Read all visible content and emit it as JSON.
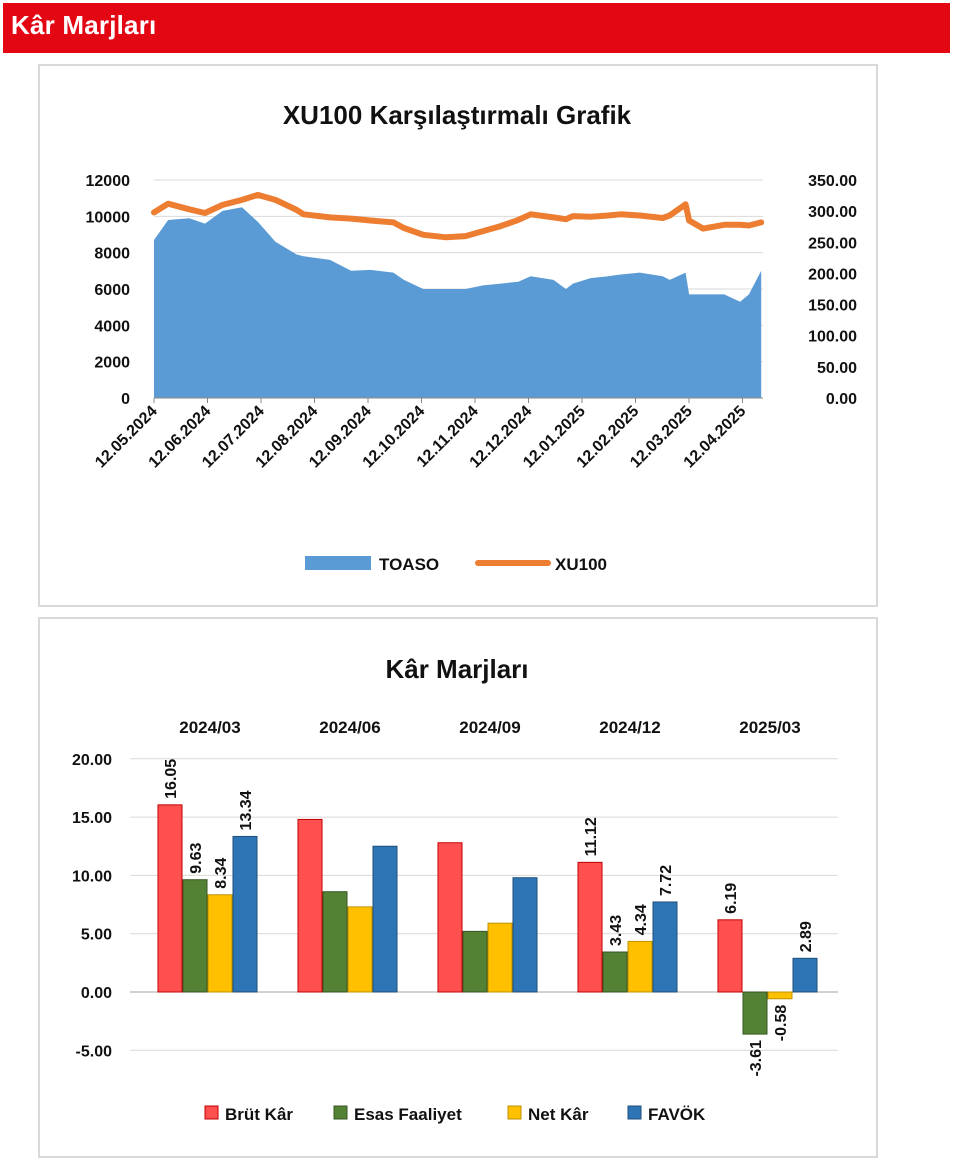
{
  "header": {
    "title": "Kâr Marjları"
  },
  "colors": {
    "header_red": "#e30613",
    "toaso_blue": "#5b9bd5",
    "xu100_orange": "#ed7d31",
    "brut": "#ff5050",
    "esas": "#548235",
    "net": "#ffc000",
    "favok": "#2e75b6"
  },
  "chart_data": [
    {
      "type": "area",
      "title": "XU100 Karşılaştırmalı  Grafik",
      "x_ticks": [
        "12.05.2024",
        "12.06.2024",
        "12.07.2024",
        "12.08.2024",
        "12.09.2024",
        "12.10.2024",
        "12.11.2024",
        "12.12.2024",
        "12.01.2025",
        "12.02.2025",
        "12.03.2025",
        "12.04.2025"
      ],
      "y_left_ticks": [
        "0",
        "2000",
        "4000",
        "6000",
        "8000",
        "10000",
        "12000"
      ],
      "y_right_ticks": [
        "0.00",
        "50.00",
        "100.00",
        "150.00",
        "200.00",
        "250.00",
        "300.00",
        "350.00"
      ],
      "ylim_left": [
        0,
        12000
      ],
      "ylim_right": [
        0,
        350
      ],
      "grid": "horizontal",
      "legend_position": "bottom",
      "series": [
        {
          "name": "TOASO",
          "axis": "left",
          "type": "area",
          "x": [
            "2024-05-12",
            "2024-05-20",
            "2024-06-01",
            "2024-06-10",
            "2024-06-20",
            "2024-07-01",
            "2024-07-10",
            "2024-07-20",
            "2024-08-01",
            "2024-08-05",
            "2024-08-20",
            "2024-09-01",
            "2024-09-12",
            "2024-09-25",
            "2024-10-01",
            "2024-10-12",
            "2024-10-25",
            "2024-11-05",
            "2024-11-15",
            "2024-11-25",
            "2024-12-05",
            "2024-12-12",
            "2024-12-25",
            "2025-01-01",
            "2025-01-05",
            "2025-01-15",
            "2025-01-25",
            "2025-02-01",
            "2025-02-12",
            "2025-02-25",
            "2025-03-01",
            "2025-03-10",
            "2025-03-12",
            "2025-03-20",
            "2025-04-01",
            "2025-04-10",
            "2025-04-15",
            "2025-04-22"
          ],
          "values": [
            8700,
            9800,
            9900,
            9600,
            10300,
            10500,
            9700,
            8600,
            7900,
            7800,
            7600,
            7000,
            7050,
            6900,
            6500,
            6000,
            6000,
            6000,
            6200,
            6300,
            6400,
            6700,
            6500,
            6000,
            6300,
            6600,
            6700,
            6800,
            6900,
            6700,
            6500,
            6900,
            5700,
            5700,
            5700,
            5300,
            5700,
            7000
          ]
        },
        {
          "name": "XU100",
          "axis": "right",
          "type": "line",
          "x": [
            "2024-05-12",
            "2024-05-20",
            "2024-06-01",
            "2024-06-10",
            "2024-06-20",
            "2024-07-01",
            "2024-07-10",
            "2024-07-20",
            "2024-08-01",
            "2024-08-05",
            "2024-08-20",
            "2024-09-01",
            "2024-09-12",
            "2024-09-25",
            "2024-10-01",
            "2024-10-12",
            "2024-10-25",
            "2024-11-05",
            "2024-11-15",
            "2024-11-25",
            "2024-12-05",
            "2024-12-12",
            "2024-12-25",
            "2025-01-01",
            "2025-01-05",
            "2025-01-15",
            "2025-01-25",
            "2025-02-01",
            "2025-02-12",
            "2025-02-25",
            "2025-03-01",
            "2025-03-10",
            "2025-03-12",
            "2025-03-20",
            "2025-04-01",
            "2025-04-10",
            "2025-04-15",
            "2025-04-22"
          ],
          "values": [
            298,
            312,
            303,
            297,
            310,
            318,
            326,
            318,
            302,
            295,
            290,
            288,
            285,
            282,
            273,
            262,
            258,
            260,
            268,
            276,
            286,
            295,
            290,
            287,
            292,
            291,
            293,
            295,
            293,
            289,
            293,
            311,
            285,
            272,
            278,
            278,
            277,
            282
          ]
        }
      ]
    },
    {
      "type": "bar",
      "title": "Kâr Marjları",
      "categories": [
        "2024/03",
        "2024/06",
        "2024/09",
        "2024/12",
        "2025/03"
      ],
      "ylim": [
        -5,
        20
      ],
      "y_ticks": [
        "-5.00",
        "0.00",
        "5.00",
        "10.00",
        "15.00",
        "20.00"
      ],
      "grid": "horizontal",
      "legend_position": "bottom",
      "series": [
        {
          "name": "Brüt Kâr",
          "values": [
            16.05,
            14.8,
            12.8,
            11.12,
            6.19
          ]
        },
        {
          "name": "Esas Faaliyet",
          "values": [
            9.63,
            8.6,
            5.2,
            3.43,
            -3.61
          ]
        },
        {
          "name": "Net Kâr",
          "values": [
            8.34,
            7.3,
            5.9,
            4.34,
            -0.58
          ]
        },
        {
          "name": "FAVÖK",
          "values": [
            13.34,
            12.5,
            9.8,
            7.72,
            2.89
          ]
        }
      ],
      "data_labels": [
        {
          "category": 0,
          "series": 0,
          "text": "16.05"
        },
        {
          "category": 0,
          "series": 1,
          "text": "9.63"
        },
        {
          "category": 0,
          "series": 2,
          "text": "8.34"
        },
        {
          "category": 0,
          "series": 3,
          "text": "13.34"
        },
        {
          "category": 3,
          "series": 0,
          "text": "11.12"
        },
        {
          "category": 3,
          "series": 1,
          "text": "3.43"
        },
        {
          "category": 3,
          "series": 2,
          "text": "4.34"
        },
        {
          "category": 3,
          "series": 3,
          "text": "7.72"
        },
        {
          "category": 4,
          "series": 0,
          "text": "6.19"
        },
        {
          "category": 4,
          "series": 1,
          "text": "-3.61"
        },
        {
          "category": 4,
          "series": 2,
          "text": "-0.58"
        },
        {
          "category": 4,
          "series": 3,
          "text": "2.89"
        }
      ]
    }
  ]
}
